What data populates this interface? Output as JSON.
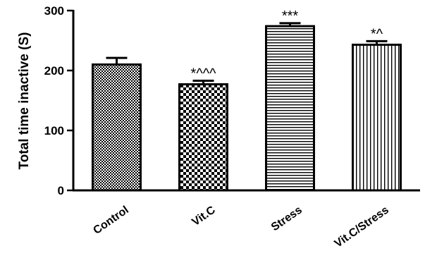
{
  "chart_data": {
    "type": "bar",
    "categories": [
      "Control",
      "Vit.C",
      "Stress",
      "Vit.C/Stress"
    ],
    "values": [
      210,
      177,
      274,
      243
    ],
    "errors": [
      11,
      6,
      5,
      6
    ],
    "annotations": [
      "",
      "*^^^",
      "***",
      "*^"
    ],
    "patterns": [
      "dense-checker",
      "checkerboard",
      "horizontal-lines",
      "vertical-lines"
    ],
    "ylabel": "Total time inactive (S)",
    "xlabel": "",
    "ylim": [
      0,
      300
    ],
    "yticks": [
      0,
      100,
      200,
      300
    ],
    "grid": false,
    "colors": {
      "ink": "#000000",
      "background": "#ffffff"
    }
  }
}
